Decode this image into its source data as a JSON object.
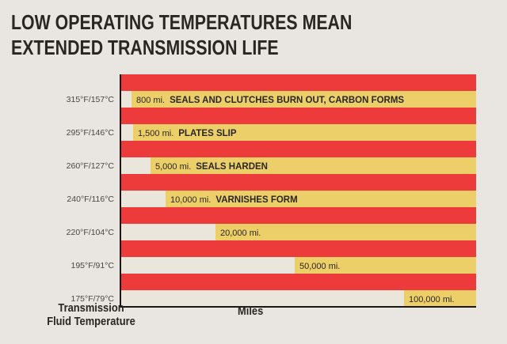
{
  "title": {
    "line1": "LOW OPERATING TEMPERATURES MEAN",
    "line2": "EXTENDED TRANSMISSION LIFE"
  },
  "colors": {
    "background": "#e9e5e0",
    "stripe_red": "#ec3b3a",
    "stripe_yellow": "#edcf6a",
    "bar_cream": "#ebe6dc",
    "text_dark": "#2a2622"
  },
  "chart_data": {
    "type": "bar",
    "orientation": "horizontal",
    "xlabel": "Miles",
    "ylabel_lines": [
      "Transmission",
      "Fluid Temperature"
    ],
    "categories": [
      "315°F/157°C",
      "295°F/146°C",
      "260°F/127°C",
      "240°F/116°C",
      "220°F/104°C",
      "195°F/91°C",
      "175°F/79°C"
    ],
    "values": [
      800,
      1500,
      5000,
      10000,
      20000,
      50000,
      100000
    ],
    "value_labels": [
      "800 mi.",
      "1,500 mi.",
      "5,000 mi.",
      "10,000 mi.",
      "20,000 mi.",
      "50,000 mi.",
      "100,000 mi."
    ],
    "annotations": [
      "SEALS AND CLUTCHES BURN OUT, CARBON FORMS",
      "PLATES SLIP",
      "SEALS HARDEN",
      "VARNISHES FORM",
      "",
      "",
      ""
    ],
    "xlim": [
      0,
      100000
    ],
    "grid": false,
    "legend": "none"
  }
}
